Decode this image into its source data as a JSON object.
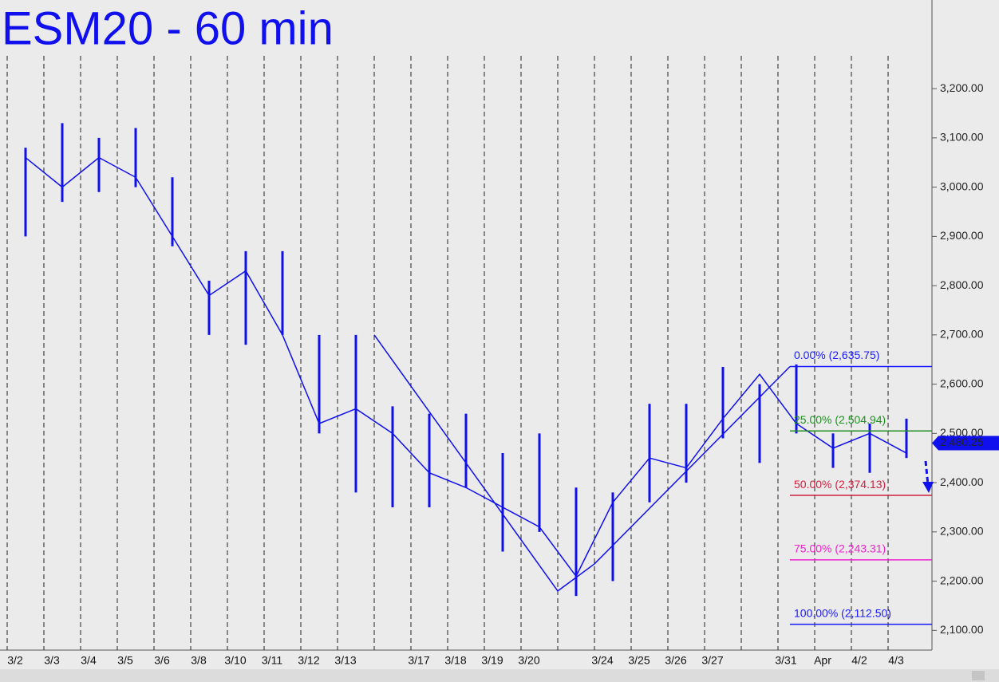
{
  "chart_data": {
    "type": "ohlc",
    "title": "ESM20 - 60 min",
    "categories": [
      "3/2",
      "3/3",
      "3/4",
      "3/5",
      "3/6",
      "3/8",
      "3/10",
      "3/11",
      "3/12",
      "3/13",
      null,
      "3/17",
      "3/18",
      "3/19",
      "3/20",
      null,
      "3/24",
      "3/25",
      "3/26",
      "3/27",
      null,
      "3/31",
      "Apr",
      "4/2",
      "4/3"
    ],
    "series": [
      {
        "name": "high",
        "color": "#1010ee",
        "values": [
          3080,
          3130,
          3100,
          3120,
          3020,
          2810,
          2870,
          2870,
          2700,
          2700,
          2555,
          2540,
          2540,
          2460,
          2500,
          2390,
          2380,
          2560,
          2560,
          2635,
          2600,
          2640,
          2500,
          2520,
          2530
        ]
      },
      {
        "name": "low",
        "color": "#1010ee",
        "values": [
          2900,
          2970,
          2990,
          3000,
          2880,
          2700,
          2680,
          2700,
          2500,
          2380,
          2350,
          2350,
          2390,
          2260,
          2300,
          2170,
          2200,
          2360,
          2400,
          2490,
          2440,
          2500,
          2430,
          2420,
          2450
        ]
      },
      {
        "name": "close",
        "color": "#1010ee",
        "values": [
          3060,
          3000,
          3060,
          3020,
          2900,
          2780,
          2830,
          2700,
          2520,
          2550,
          2500,
          2420,
          2390,
          2350,
          2310,
          2210,
          2360,
          2450,
          2430,
          2530,
          2620,
          2520,
          2470,
          2500,
          2460
        ]
      }
    ],
    "ylim": [
      2060,
      3380
    ],
    "yticks": [
      {
        "value": 2100,
        "label": "2,100.00"
      },
      {
        "value": 2200,
        "label": "2,200.00"
      },
      {
        "value": 2300,
        "label": "2,300.00"
      },
      {
        "value": 2400,
        "label": "2,400.00"
      },
      {
        "value": 2500,
        "label": "2,500.00"
      },
      {
        "value": 2600,
        "label": "2,600.00"
      },
      {
        "value": 2700,
        "label": "2,700.00"
      },
      {
        "value": 2800,
        "label": "2,800.00"
      },
      {
        "value": 2900,
        "label": "2,900.00"
      },
      {
        "value": 3000,
        "label": "3,000.00"
      },
      {
        "value": 3100,
        "label": "3,100.00"
      },
      {
        "value": 3200,
        "label": "3,200.00"
      }
    ],
    "fib_levels": [
      {
        "label": "0.00% (2,635.75)",
        "value": 2635.75,
        "color": "#1a1aff"
      },
      {
        "label": "25.00% (2,504.94)",
        "value": 2504.94,
        "color": "#1f8f1f"
      },
      {
        "label": "50.00% (2,374.13)",
        "value": 2374.13,
        "color": "#d02040"
      },
      {
        "label": "75.00% (2,243.31)",
        "value": 2243.31,
        "color": "#ee22cc"
      },
      {
        "label": "100.00% (2,112.50)",
        "value": 2112.5,
        "color": "#1a1aff"
      }
    ],
    "trendline": {
      "color": "#1010ee",
      "values": [
        2700,
        2180,
        2235,
        2635.75
      ]
    },
    "last_price": {
      "value": 2480.25,
      "label": "2,480.25"
    }
  }
}
